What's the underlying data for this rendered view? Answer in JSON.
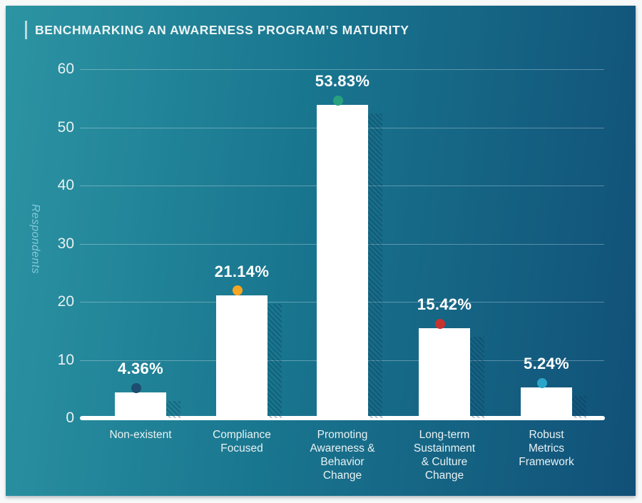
{
  "header": {
    "title": "BENCHMARKING AN AWARENESS PROGRAM’S MATURITY"
  },
  "chart_data": {
    "type": "bar",
    "title": "BENCHMARKING AN AWARENESS PROGRAM’S MATURITY",
    "ylabel": "Respondents",
    "xlabel": "",
    "ylim": [
      0,
      60
    ],
    "yticks": [
      0,
      10,
      20,
      30,
      40,
      50,
      60
    ],
    "grid": "horizontal",
    "legend": "none",
    "categories": [
      "Non-existent",
      "Compliance Focused",
      "Promoting Awareness & Behavior Change",
      "Long-term Sustainment & Culture Change",
      "Robust Metrics Framework"
    ],
    "categories_display": [
      "Non-existent",
      "Compliance\nFocused",
      "Promoting\nAwareness &\nBehavior\nChange",
      "Long-term\nSustainment\n& Culture\nChange",
      "Robust\nMetrics\nFramework"
    ],
    "values": [
      4.36,
      21.14,
      53.83,
      15.42,
      5.24
    ],
    "value_labels": [
      "4.36%",
      "21.14%",
      "53.83%",
      "15.42%",
      "5.24%"
    ],
    "bar_color": "#ffffff",
    "marker_colors": [
      "#1d4d70",
      "#f6a623",
      "#27a17e",
      "#c6332e",
      "#2ba5c9"
    ],
    "background_gradient": [
      "#2c94a3",
      "#115078"
    ],
    "axis_text_color": "#e9f1f2",
    "ylabel_color": "#82c7d9"
  }
}
